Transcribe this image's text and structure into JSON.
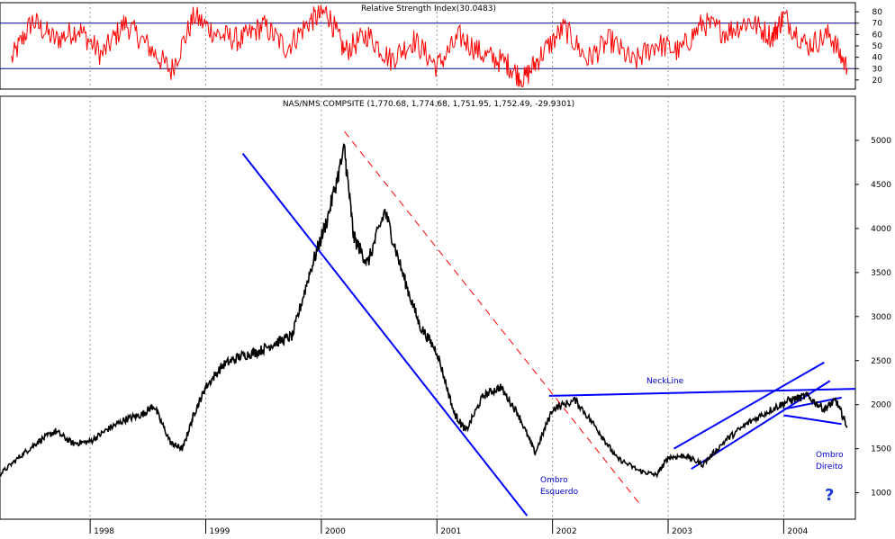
{
  "chart_data": [
    {
      "type": "line",
      "panel": "rsi",
      "title": "Relative Strength Index(30.0483)",
      "ylim": [
        12,
        88
      ],
      "yticks": [
        20,
        30,
        40,
        50,
        60,
        70,
        80
      ],
      "reference_lines": [
        30,
        70
      ],
      "grid": true,
      "color": "#ff0000",
      "series": [
        {
          "x": [
            1997.32,
            1997.5,
            1997.7,
            1997.9,
            1998.1,
            1998.3,
            1998.5,
            1998.7,
            1998.9,
            1999.1,
            1999.3,
            1999.5,
            1999.7,
            1999.9,
            2000.05,
            2000.2,
            2000.4,
            2000.6,
            2000.8,
            2001.0,
            2001.2,
            2001.4,
            2001.6,
            2001.75,
            2001.9,
            2002.1,
            2002.3,
            2002.5,
            2002.7,
            2002.9,
            2003.1,
            2003.3,
            2003.5,
            2003.7,
            2003.9,
            2004.0,
            2004.2,
            2004.4,
            2004.55
          ],
          "values": [
            38,
            72,
            55,
            65,
            42,
            70,
            50,
            28,
            76,
            60,
            55,
            68,
            48,
            72,
            80,
            45,
            60,
            38,
            55,
            32,
            58,
            42,
            35,
            20,
            42,
            66,
            38,
            55,
            35,
            52,
            45,
            70,
            62,
            72,
            58,
            76,
            50,
            60,
            30
          ]
        }
      ]
    },
    {
      "type": "line",
      "panel": "price",
      "title": "NAS/NMS COMPSITE (1,770.68, 1,774.68, 1,751.95, 1,752.49, -29.9301)",
      "ylim": [
        700,
        5500
      ],
      "yticks": [
        1000,
        1500,
        2000,
        2500,
        3000,
        3500,
        4000,
        4500,
        5000
      ],
      "xlim": [
        1997.22,
        2004.62
      ],
      "xticks": [
        "1998",
        "1999",
        "2000",
        "2001",
        "2002",
        "2003",
        "2004"
      ],
      "grid": true,
      "series": [
        {
          "x": [
            1997.22,
            1997.4,
            1997.55,
            1997.7,
            1997.85,
            1998.0,
            1998.15,
            1998.3,
            1998.45,
            1998.55,
            1998.7,
            1998.8,
            1998.9,
            1999.0,
            1999.15,
            1999.3,
            1999.45,
            1999.6,
            1999.75,
            1999.9,
            2000.05,
            2000.2,
            2000.28,
            2000.4,
            2000.55,
            2000.7,
            2000.85,
            2001.0,
            2001.15,
            2001.25,
            2001.4,
            2001.55,
            2001.7,
            2001.85,
            2002.0,
            2002.2,
            2002.4,
            2002.55,
            2002.75,
            2002.9,
            2003.0,
            2003.15,
            2003.3,
            2003.5,
            2003.7,
            2003.9,
            2004.05,
            2004.2,
            2004.35,
            2004.45,
            2004.55
          ],
          "values": [
            1210,
            1420,
            1580,
            1700,
            1560,
            1580,
            1720,
            1830,
            1890,
            1990,
            1560,
            1500,
            1900,
            2200,
            2450,
            2550,
            2600,
            2700,
            2780,
            3500,
            4100,
            4900,
            3900,
            3600,
            4200,
            3500,
            2900,
            2600,
            1900,
            1700,
            2100,
            2200,
            1900,
            1450,
            1950,
            2050,
            1700,
            1400,
            1250,
            1200,
            1400,
            1420,
            1320,
            1600,
            1800,
            1950,
            2050,
            2100,
            1950,
            2050,
            1752
          ]
        }
      ],
      "annotations": [
        {
          "text": "NeckLine",
          "color": "#0000cc"
        },
        {
          "text": "Ombro\nEsquerdo",
          "color": "#0000cc"
        },
        {
          "text": "Ombro\nDireito",
          "color": "#0000cc"
        },
        {
          "text": "?",
          "color": "#0000cc"
        }
      ],
      "trendlines": [
        {
          "name": "neckline",
          "color": "#0000ff",
          "from": [
            2001.97,
            2100
          ],
          "to": [
            2004.62,
            2180
          ]
        },
        {
          "name": "downtrend-support",
          "color": "#0000ff",
          "from": [
            1999.32,
            4850
          ],
          "to": [
            2001.78,
            740
          ]
        },
        {
          "name": "downtrend-resistance",
          "color": "#ff0000",
          "dashed": true,
          "from": [
            2000.2,
            5100
          ],
          "to": [
            2002.75,
            880
          ]
        },
        {
          "name": "channel-upper",
          "color": "#0000ff",
          "from": [
            2003.05,
            1500
          ],
          "to": [
            2004.35,
            2480
          ]
        },
        {
          "name": "channel-lower",
          "color": "#0000ff",
          "from": [
            2003.2,
            1270
          ],
          "to": [
            2004.4,
            2270
          ]
        },
        {
          "name": "right-shoulder-top",
          "color": "#0000ff",
          "from": [
            2004.0,
            1950
          ],
          "to": [
            2004.5,
            2080
          ]
        },
        {
          "name": "right-shoulder-bottom",
          "color": "#0000ff",
          "from": [
            2004.0,
            1880
          ],
          "to": [
            2004.5,
            1780
          ]
        }
      ]
    }
  ]
}
